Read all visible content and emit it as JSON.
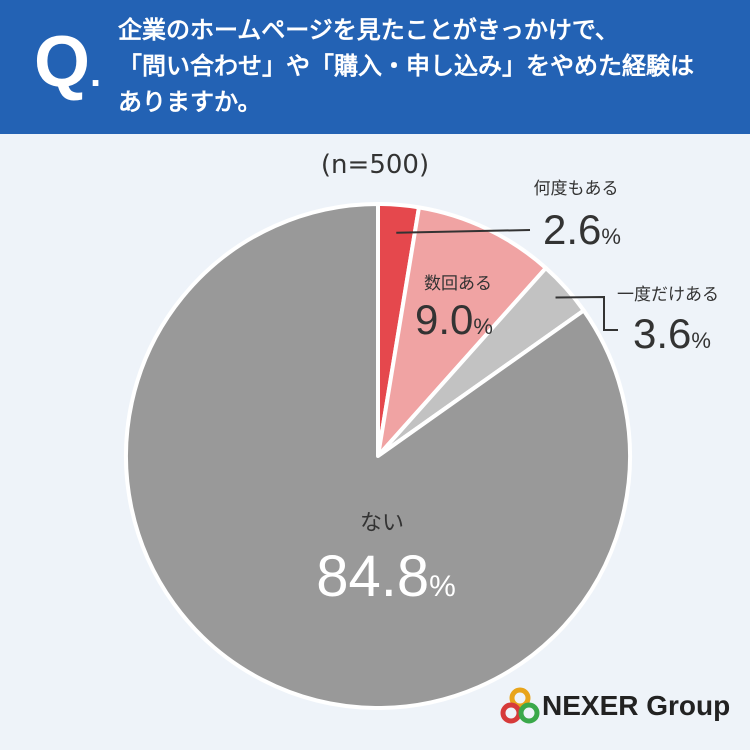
{
  "header": {
    "q_label": "Q",
    "q_dot": ".",
    "question_lines": [
      "企業のホームページを見たことがきっかけで、",
      "「問い合わせ」や「購入・申し込み」をやめた経験は",
      "ありますか。"
    ]
  },
  "sample_size": "(n=500)",
  "chart_data": {
    "type": "pie",
    "title": "",
    "slices": [
      {
        "label": "何度もある",
        "value": 2.6,
        "display": "2.6",
        "color": "#e5484d"
      },
      {
        "label": "数回ある",
        "value": 9.0,
        "display": "9.0",
        "color": "#f0a3a3"
      },
      {
        "label": "一度だけある",
        "value": 3.6,
        "display": "3.6",
        "color": "#c2c2c2"
      },
      {
        "label": "ない",
        "value": 84.8,
        "display": "84.8",
        "color": "#999999"
      }
    ],
    "unit": "%"
  },
  "logo": {
    "text": "NEXER Group",
    "colors": [
      "#e8a41a",
      "#d63a3a",
      "#3aa84a"
    ]
  }
}
